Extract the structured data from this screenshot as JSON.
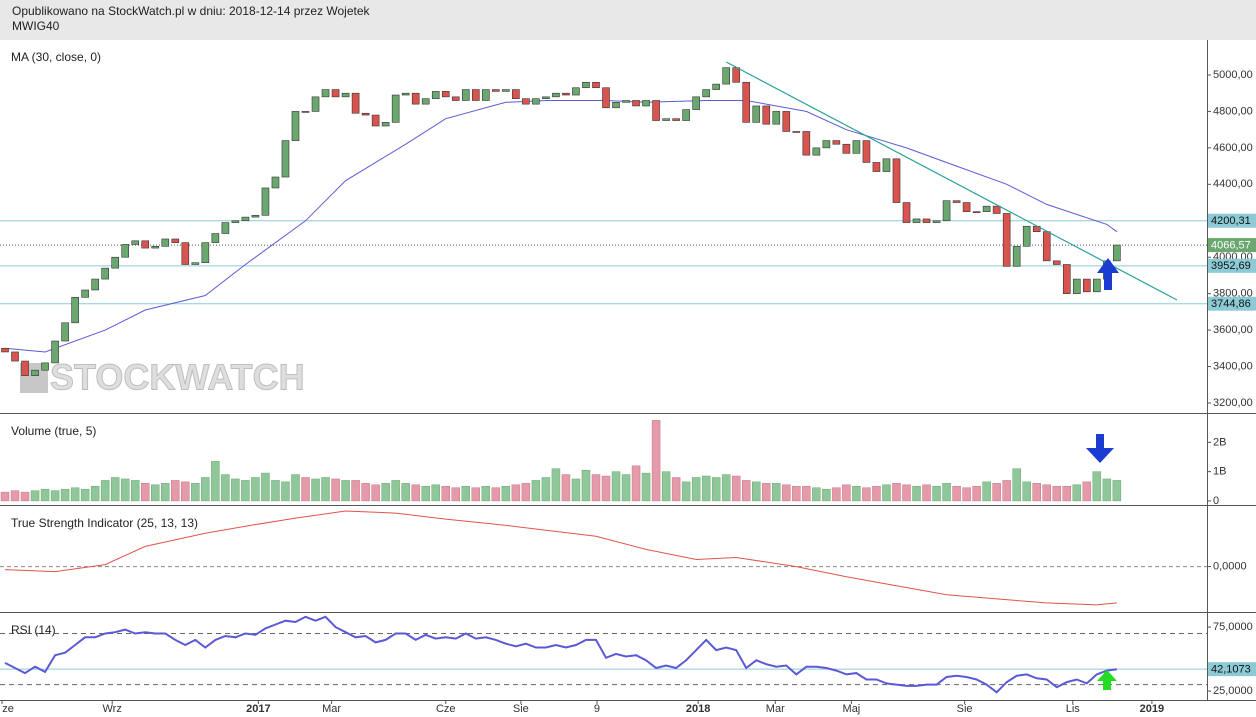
{
  "header": {
    "line1": "Opublikowano na StockWatch.pl w dniu: 2018-12-14 przez Wojetek",
    "line2": "MWIG40"
  },
  "chart_data": [
    {
      "type": "candlestick",
      "title": "MA (30, close, 0)",
      "watermark": "STOCKWATCH",
      "up_color": "#6aa86f",
      "down_color": "#d9534f",
      "xlim": [
        -0.5,
        120
      ],
      "ylim": [
        3145,
        5192
      ],
      "yticks": [
        {
          "value": 3200,
          "label": "3200,00"
        },
        {
          "value": 3400,
          "label": "3400,00"
        },
        {
          "value": 3600,
          "label": "3600,00"
        },
        {
          "value": 3800,
          "label": "3800,00"
        },
        {
          "value": 4000,
          "label": "4000,00"
        },
        {
          "value": 4200,
          "label": "4200,00"
        },
        {
          "value": 4400,
          "label": "4400,00"
        },
        {
          "value": 4600,
          "label": "4600,00"
        },
        {
          "value": 4800,
          "label": "4800,00"
        },
        {
          "value": 5000,
          "label": "5000,00"
        }
      ],
      "open": [
        3500,
        3480,
        3430,
        3350,
        3380,
        3420,
        3540,
        3640,
        3780,
        3820,
        3880,
        3940,
        4000,
        4070,
        4090,
        4050,
        4060,
        4100,
        4080,
        3960,
        3970,
        4080,
        4130,
        4190,
        4200,
        4220,
        4230,
        4380,
        4440,
        4640,
        4800,
        4800,
        4880,
        4920,
        4880,
        4900,
        4790,
        4780,
        4720,
        4740,
        4890,
        4900,
        4840,
        4870,
        4910,
        4880,
        4860,
        4920,
        4860,
        4920,
        4910,
        4920,
        4870,
        4840,
        4870,
        4880,
        4900,
        4890,
        4930,
        4960,
        4930,
        4820,
        4850,
        4860,
        4830,
        4860,
        4750,
        4760,
        4750,
        4810,
        4880,
        4920,
        4950,
        5040,
        4960,
        4740,
        4830,
        4730,
        4800,
        4690,
        4690,
        4560,
        4600,
        4640,
        4620,
        4570,
        4640,
        4520,
        4470,
        4540,
        4300,
        4190,
        4210,
        4190,
        4200,
        4310,
        4300,
        4250,
        4250,
        4280,
        4240,
        3950,
        4060,
        4170,
        4140,
        3980,
        3960,
        3800,
        3880,
        3810,
        3880,
        3980
      ],
      "close": [
        3480,
        3430,
        3350,
        3380,
        3420,
        3540,
        3640,
        3780,
        3820,
        3880,
        3940,
        4000,
        4070,
        4090,
        4050,
        4060,
        4100,
        4080,
        3960,
        3970,
        4080,
        4130,
        4190,
        4200,
        4220,
        4230,
        4380,
        4440,
        4640,
        4800,
        4800,
        4880,
        4920,
        4880,
        4900,
        4790,
        4780,
        4720,
        4740,
        4890,
        4900,
        4840,
        4870,
        4910,
        4880,
        4860,
        4920,
        4860,
        4920,
        4910,
        4920,
        4870,
        4840,
        4870,
        4880,
        4900,
        4890,
        4930,
        4960,
        4930,
        4820,
        4850,
        4860,
        4830,
        4860,
        4750,
        4760,
        4750,
        4810,
        4880,
        4920,
        4950,
        5040,
        4960,
        4740,
        4830,
        4730,
        4800,
        4690,
        4690,
        4560,
        4600,
        4640,
        4620,
        4570,
        4640,
        4520,
        4470,
        4540,
        4300,
        4190,
        4210,
        4190,
        4200,
        4310,
        4300,
        4250,
        4250,
        4280,
        4240,
        3950,
        4060,
        4170,
        4140,
        3980,
        3960,
        3800,
        3880,
        3810,
        3880,
        3980,
        4066.57
      ],
      "ma": {
        "color": "#5a5ad6",
        "x": [
          0,
          4,
          10,
          14,
          20,
          24,
          30,
          34,
          40,
          44,
          50,
          54,
          60,
          64,
          70,
          74,
          80,
          84,
          90,
          94,
          100,
          104,
          110,
          111
        ],
        "values": [
          3500,
          3480,
          3600,
          3710,
          3790,
          3960,
          4200,
          4420,
          4620,
          4760,
          4850,
          4860,
          4860,
          4850,
          4860,
          4860,
          4800,
          4700,
          4600,
          4520,
          4400,
          4290,
          4180,
          4140
        ]
      },
      "trendline": {
        "color": "#2aa198",
        "x": [
          72,
          117
        ],
        "values": [
          5071,
          3765
        ]
      },
      "hline_color": "#8ccbd6",
      "hlines": [
        {
          "value": 4200.31,
          "label": "4200,31"
        },
        {
          "value": 3952.69,
          "label": "3952,69"
        },
        {
          "value": 3744.86,
          "label": "3744,86"
        }
      ],
      "last": {
        "value": 4066.57,
        "label": "4066,57"
      }
    },
    {
      "type": "bar",
      "title": "Volume (true, 5)",
      "up_color": "#8fc79a",
      "down_color": "#e49aa9",
      "xlim": [
        -0.5,
        120
      ],
      "ylim": [
        -0.14,
        2.97
      ],
      "yticks": [
        0,
        {
          "value": 1,
          "label": "1B"
        },
        {
          "value": 2,
          "label": "2B"
        }
      ],
      "values": [
        0.3,
        0.35,
        0.3,
        0.35,
        0.4,
        0.35,
        0.4,
        0.45,
        0.4,
        0.5,
        0.7,
        0.8,
        0.75,
        0.7,
        0.6,
        0.55,
        0.6,
        0.7,
        0.65,
        0.6,
        0.8,
        1.35,
        0.9,
        0.75,
        0.7,
        0.8,
        0.95,
        0.7,
        0.65,
        0.9,
        0.8,
        0.75,
        0.8,
        0.75,
        0.7,
        0.7,
        0.6,
        0.55,
        0.6,
        0.7,
        0.6,
        0.55,
        0.5,
        0.55,
        0.5,
        0.45,
        0.5,
        0.45,
        0.5,
        0.45,
        0.5,
        0.55,
        0.6,
        0.7,
        0.8,
        1.1,
        0.9,
        0.75,
        1.05,
        0.9,
        0.85,
        1.0,
        0.9,
        1.2,
        0.95,
        2.75,
        1.0,
        0.8,
        0.65,
        0.8,
        0.85,
        0.8,
        0.9,
        0.85,
        0.7,
        0.65,
        0.6,
        0.6,
        0.55,
        0.5,
        0.5,
        0.45,
        0.4,
        0.45,
        0.55,
        0.5,
        0.45,
        0.5,
        0.55,
        0.6,
        0.55,
        0.5,
        0.55,
        0.5,
        0.6,
        0.5,
        0.45,
        0.5,
        0.65,
        0.6,
        0.7,
        1.1,
        0.65,
        0.6,
        0.55,
        0.5,
        0.5,
        0.55,
        0.65,
        1.0,
        0.75,
        0.7
      ]
    },
    {
      "type": "line",
      "title": "True Strength Indicator (25, 13, 13)",
      "color": "#e0554a",
      "grid": true,
      "xlim": [
        -0.5,
        120
      ],
      "ylim": [
        -0.45,
        0.6
      ],
      "yticks": [
        {
          "value": 0,
          "label": "0,0000"
        }
      ],
      "x": [
        0,
        5,
        10,
        14,
        20,
        24,
        29,
        34,
        39,
        44,
        49,
        54,
        59,
        64,
        69,
        73,
        79,
        84,
        89,
        94,
        99,
        104,
        109,
        111
      ],
      "values": [
        -0.03,
        -0.05,
        0.02,
        0.2,
        0.33,
        0.4,
        0.48,
        0.55,
        0.53,
        0.47,
        0.42,
        0.36,
        0.3,
        0.17,
        0.07,
        0.09,
        0,
        -0.1,
        -0.19,
        -0.28,
        -0.32,
        -0.36,
        -0.38,
        -0.36
      ]
    },
    {
      "type": "line",
      "title": "RSI (14)",
      "color": "#5a5ad6",
      "bands": [
        70,
        30
      ],
      "hline_color": "#8ccbd6",
      "xlim": [
        -0.5,
        120
      ],
      "ylim": [
        18,
        86
      ],
      "yticks": [
        {
          "value": 75,
          "label": "75,0000"
        },
        {
          "value": 25,
          "label": "25,0000"
        }
      ],
      "hlines": [
        {
          "value": 42.1073,
          "label": "42,1073"
        }
      ],
      "xticks": [
        {
          "value": -0.3,
          "label": "ze"
        },
        {
          "value": 10.7,
          "label": "Wrz"
        },
        {
          "value": 25.3,
          "label": "2017"
        },
        {
          "value": 32.6,
          "label": "Mar"
        },
        {
          "value": 44,
          "label": "Cze"
        },
        {
          "value": 51.5,
          "label": "Sie"
        },
        {
          "value": 59.1,
          "label": "9"
        },
        {
          "value": 69.2,
          "label": "2018"
        },
        {
          "value": 76.9,
          "label": "Mar"
        },
        {
          "value": 84.5,
          "label": "Maj"
        },
        {
          "value": 95.8,
          "label": "Sie"
        },
        {
          "value": 106.6,
          "label": "Lis"
        },
        {
          "value": 114.5,
          "label": "2019"
        }
      ],
      "values": [
        47,
        43,
        39,
        44,
        40,
        53,
        55,
        61,
        67,
        67,
        70,
        71,
        73,
        70,
        71,
        70,
        70,
        65,
        61,
        65,
        59,
        65,
        68,
        67,
        70,
        69,
        74,
        77,
        80,
        79,
        83,
        80,
        83,
        75,
        71,
        67,
        68,
        63,
        65,
        70,
        70,
        65,
        69,
        66,
        67,
        66,
        70,
        66,
        67,
        65,
        62,
        60,
        62,
        59,
        59,
        61,
        59,
        61,
        65,
        65,
        51,
        54,
        52,
        53,
        49,
        43,
        45,
        43,
        49,
        57,
        65,
        57,
        59,
        57,
        43,
        49,
        46,
        44,
        45,
        38,
        44,
        44,
        43,
        41,
        38,
        39,
        34,
        34,
        31,
        30,
        29,
        29,
        30,
        30,
        36,
        37,
        36,
        34,
        30,
        24,
        32,
        37,
        38,
        35,
        34,
        28,
        32,
        34,
        31,
        38,
        41,
        42.1073
      ]
    }
  ]
}
